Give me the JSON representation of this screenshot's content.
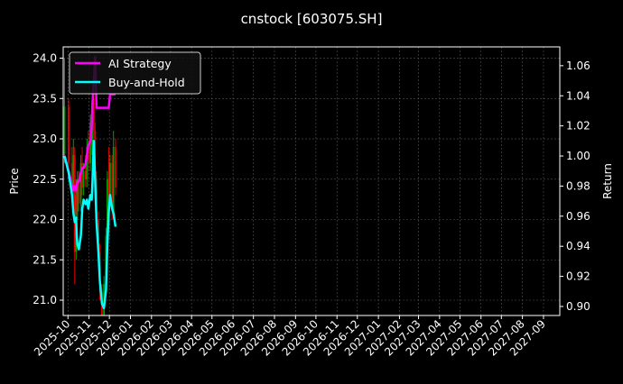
{
  "chart_data": {
    "type": "line",
    "title": "cnstock [603075.SH]",
    "ylabel_left": "Price",
    "ylabel_right": "Return",
    "xlim": [
      "2025-09-24",
      "2027-09-25"
    ],
    "ylim_left": [
      20.81,
      24.14
    ],
    "ylim_right": [
      0.894,
      1.0725
    ],
    "grid": true,
    "legend_position": "top-left",
    "x_ticks": [
      "2025-10",
      "2025-11",
      "2025-12",
      "2026-01",
      "2026-02",
      "2026-03",
      "2026-04",
      "2026-05",
      "2026-06",
      "2026-07",
      "2026-08",
      "2026-09",
      "2026-10",
      "2026-11",
      "2026-12",
      "2027-01",
      "2027-02",
      "2027-03",
      "2027-04",
      "2027-05",
      "2027-06",
      "2027-07",
      "2027-08",
      "2027-09"
    ],
    "y_ticks_left": [
      "21.0",
      "21.5",
      "22.0",
      "22.5",
      "23.0",
      "23.5",
      "24.0"
    ],
    "y_ticks_right": [
      "0.90",
      "0.92",
      "0.94",
      "0.96",
      "0.98",
      "1.00",
      "1.02",
      "1.04",
      "1.06"
    ],
    "colors": {
      "up": "#00a000",
      "down": "#e00000",
      "ai": "#ff00ff",
      "bh": "#00ffff",
      "grid": "#555555"
    },
    "dates": [
      "2025-09-26",
      "2025-10-02",
      "2025-10-07",
      "2025-10-09",
      "2025-10-11",
      "2025-10-13",
      "2025-10-14",
      "2025-10-15",
      "2025-10-17",
      "2025-10-20",
      "2025-10-22",
      "2025-10-24",
      "2025-10-27",
      "2025-10-29",
      "2025-10-31",
      "2025-11-03",
      "2025-11-05",
      "2025-11-06",
      "2025-11-08",
      "2025-11-10",
      "2025-11-12",
      "2025-11-15",
      "2025-11-17",
      "2025-11-20",
      "2025-11-23",
      "2025-11-26",
      "2025-11-28",
      "2025-11-30",
      "2025-12-02",
      "2025-12-05",
      "2025-12-07",
      "2025-12-10"
    ],
    "candles": [
      [
        22.8,
        24.0,
        22.7,
        23.4
      ],
      [
        23.4,
        23.5,
        22.6,
        22.7
      ],
      [
        22.7,
        22.9,
        22.3,
        22.4
      ],
      [
        22.4,
        23.0,
        22.2,
        22.8
      ],
      [
        22.8,
        22.9,
        21.2,
        21.6
      ],
      [
        21.6,
        22.5,
        21.5,
        22.3
      ],
      [
        22.3,
        22.5,
        22.0,
        22.1
      ],
      [
        22.1,
        22.6,
        22.0,
        22.5
      ],
      [
        22.5,
        22.6,
        22.1,
        22.2
      ],
      [
        22.2,
        22.8,
        22.1,
        22.7
      ],
      [
        22.7,
        22.9,
        22.3,
        22.4
      ],
      [
        22.4,
        22.7,
        22.3,
        22.6
      ],
      [
        22.6,
        22.8,
        22.4,
        22.5
      ],
      [
        22.5,
        23.0,
        22.4,
        22.9
      ],
      [
        22.9,
        23.1,
        22.6,
        22.7
      ],
      [
        22.7,
        23.3,
        22.6,
        23.2
      ],
      [
        23.2,
        23.4,
        22.8,
        22.9
      ],
      [
        22.9,
        23.6,
        22.8,
        23.5
      ],
      [
        23.5,
        23.7,
        23.0,
        23.1
      ],
      [
        23.1,
        23.2,
        22.4,
        22.5
      ],
      [
        22.5,
        22.6,
        21.9,
        22.0
      ],
      [
        22.0,
        22.1,
        21.5,
        21.6
      ],
      [
        21.6,
        21.7,
        21.0,
        21.1
      ],
      [
        21.1,
        21.2,
        20.7,
        20.8
      ],
      [
        20.8,
        21.3,
        20.7,
        21.2
      ],
      [
        21.2,
        21.9,
        21.1,
        21.8
      ],
      [
        21.8,
        22.6,
        21.7,
        22.5
      ],
      [
        22.5,
        22.9,
        22.2,
        22.3
      ],
      [
        22.3,
        22.8,
        22.2,
        22.7
      ],
      [
        22.7,
        22.8,
        22.0,
        22.1
      ],
      [
        22.1,
        23.1,
        22.0,
        22.9
      ],
      [
        22.9,
        23.0,
        22.3,
        22.4
      ]
    ],
    "series": [
      {
        "name": "AI Strategy",
        "values": [
          1.0,
          0.99,
          0.98,
          0.977,
          0.98,
          0.977,
          0.98,
          0.983,
          0.983,
          0.989,
          0.992,
          0.992,
          0.995,
          1.001,
          1.007,
          1.01,
          1.02,
          1.035,
          1.05,
          1.066,
          1.032,
          1.032,
          1.032,
          1.032,
          1.032,
          1.032,
          1.032,
          1.032,
          1.041,
          1.041,
          1.041,
          1.041
        ]
      },
      {
        "name": "Buy-and-Hold",
        "values": [
          1.0,
          0.989,
          0.974,
          0.962,
          0.956,
          0.959,
          0.947,
          0.941,
          0.938,
          0.947,
          0.965,
          0.971,
          0.968,
          0.971,
          0.965,
          0.974,
          0.971,
          0.983,
          1.01,
          0.983,
          0.956,
          0.935,
          0.917,
          0.902,
          0.899,
          0.911,
          0.941,
          0.962,
          0.974,
          0.965,
          0.962,
          0.953
        ]
      }
    ]
  }
}
